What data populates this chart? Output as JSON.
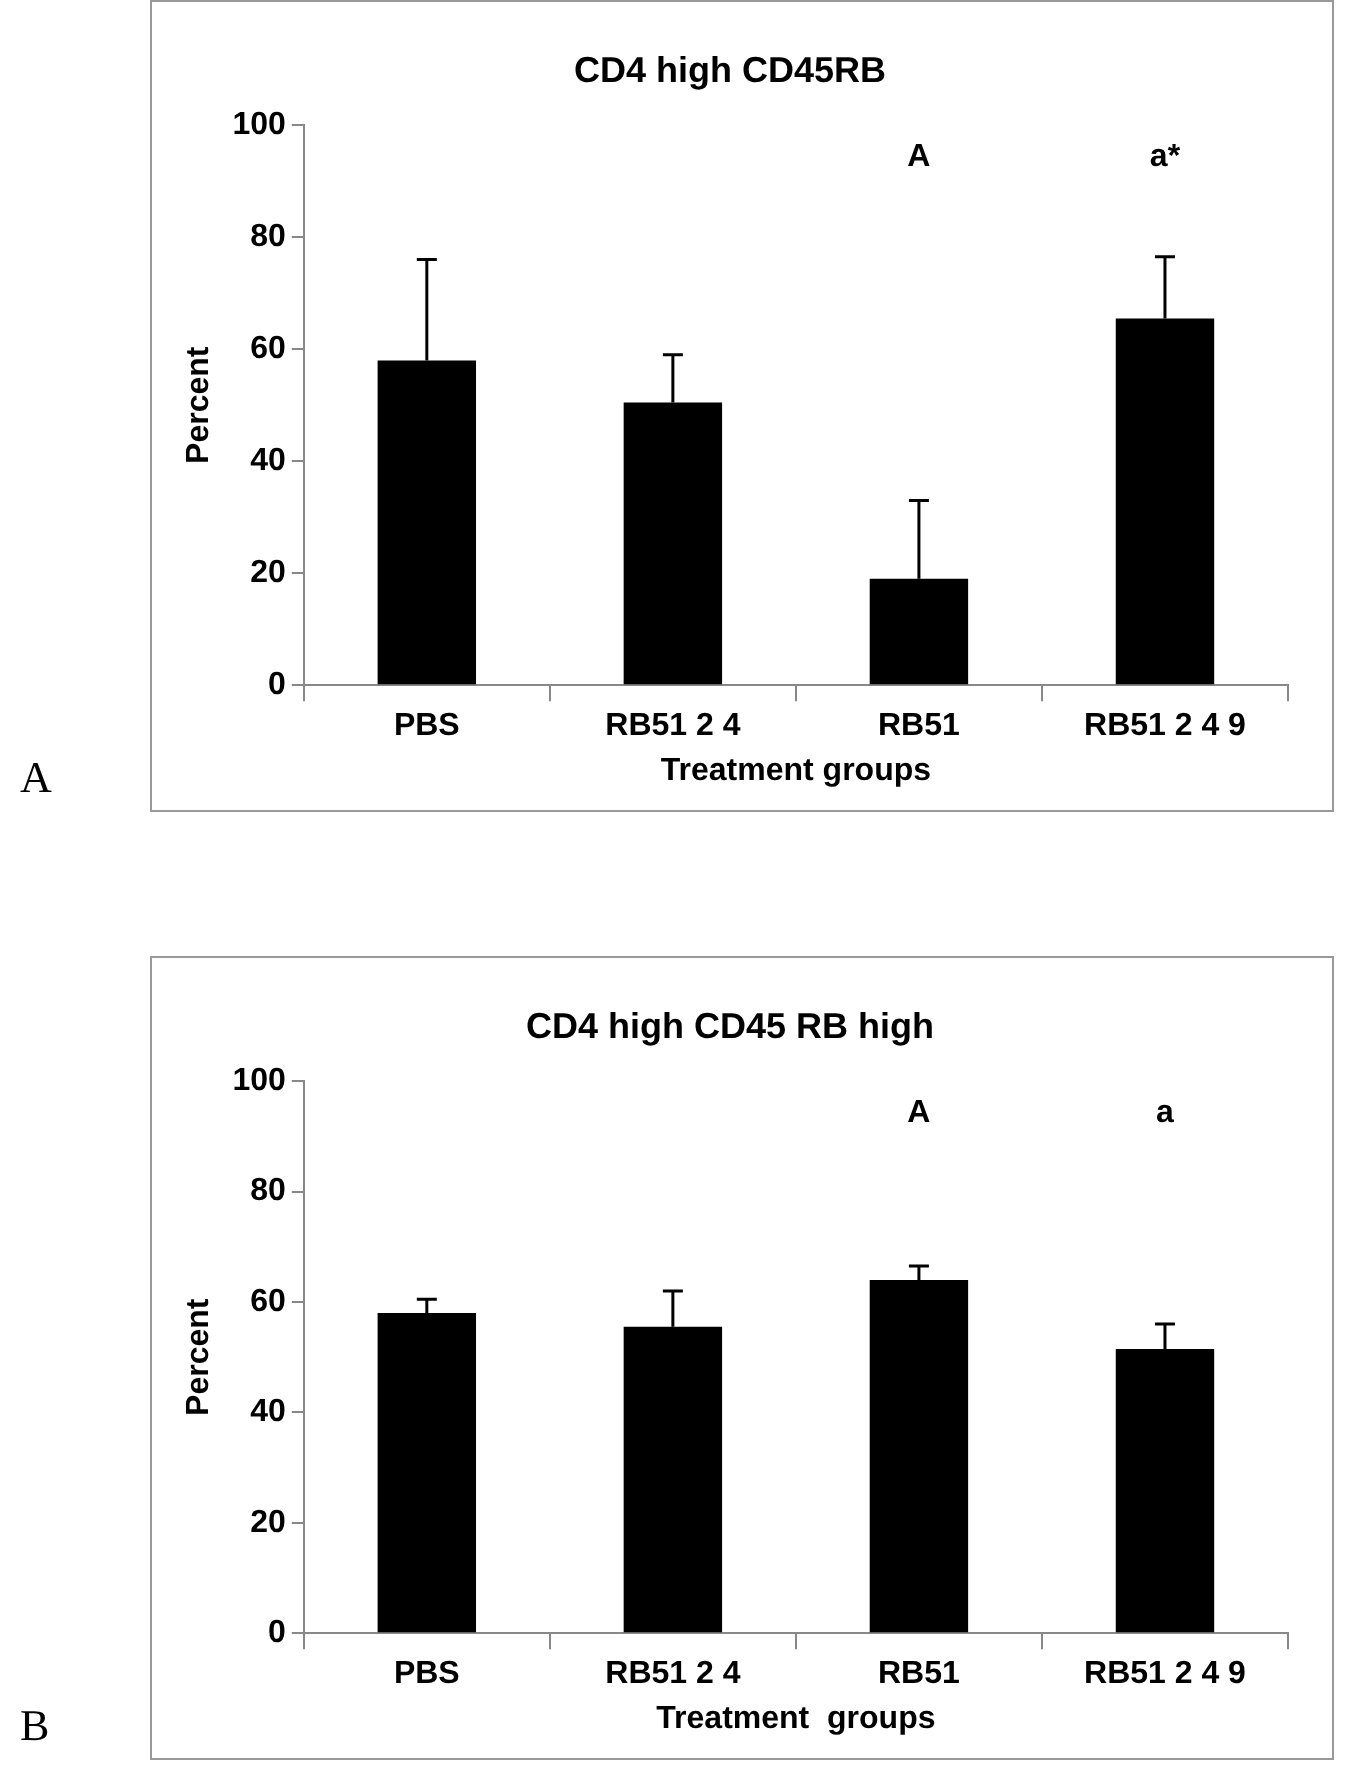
{
  "chart_data": [
    {
      "type": "bar",
      "title": "CD4 high CD45RB",
      "xlabel": "Treatment groups",
      "ylabel": "Percent",
      "categories": [
        "PBS",
        "RB51 2 4",
        "RB51",
        "RB51 2 4 9"
      ],
      "values": [
        58,
        50.5,
        19,
        65.5
      ],
      "color": "#000000",
      "errors": [
        [
          58,
          76
        ],
        [
          50.5,
          59
        ],
        [
          19,
          33
        ],
        [
          65.5,
          76.5
        ]
      ],
      "ylim": [
        0,
        100
      ],
      "yticks": [
        0,
        20,
        40,
        60,
        80,
        100
      ],
      "annotations": [
        "A",
        "a*",
        "A"
      ]
    },
    {
      "type": "bar",
      "title": "CD4 high CD45 RB high",
      "xlabel": "Treatment  groups",
      "ylabel": "Percent",
      "categories": [
        "PBS",
        "RB51 2 4",
        "RB51",
        "RB51 2 4 9"
      ],
      "values": [
        58,
        55.5,
        64,
        51.5
      ],
      "color": "#000000",
      "errors": [
        [
          58,
          60.5
        ],
        [
          55.5,
          62
        ],
        [
          64,
          66.5
        ],
        [
          51.5,
          56
        ]
      ],
      "ylim": [
        0,
        100
      ],
      "yticks": [
        0,
        20,
        40,
        60,
        80,
        100
      ],
      "annotations": [
        "A",
        "a",
        "B"
      ]
    }
  ]
}
